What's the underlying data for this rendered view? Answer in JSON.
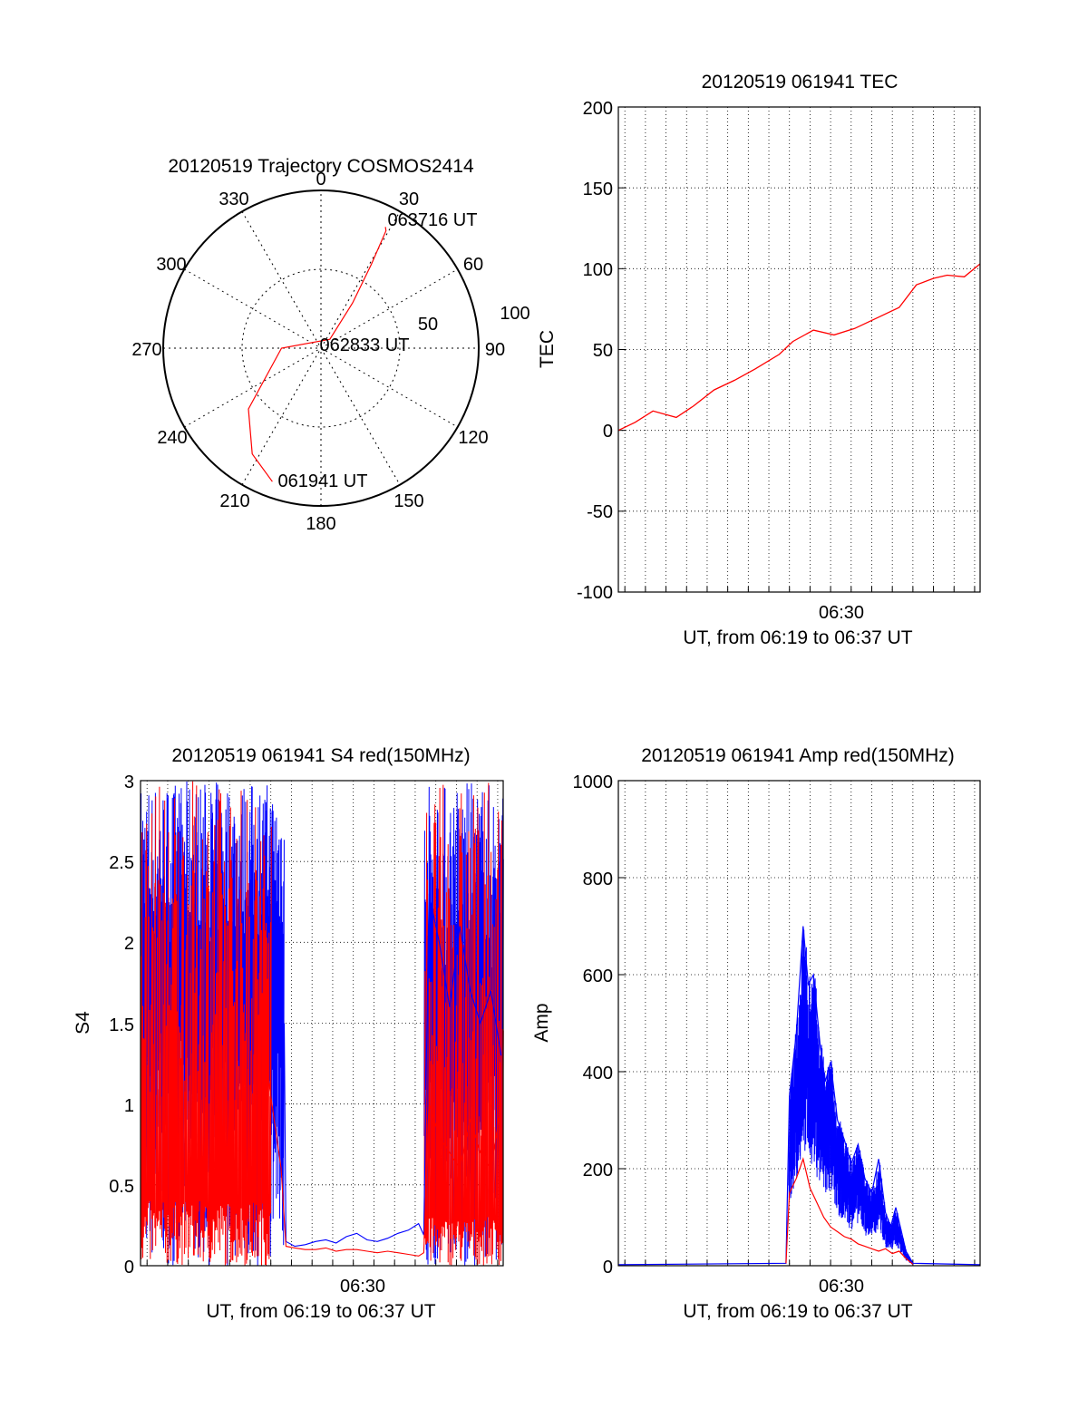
{
  "colors": {
    "red": "#ff0000",
    "blue": "#0000ff",
    "axis": "#000000"
  },
  "polar": {
    "title": "20120519 Trajectory COSMOS2414",
    "angle_labels": [
      "0",
      "30",
      "60",
      "90",
      "120",
      "150",
      "180",
      "210",
      "240",
      "270",
      "300",
      "330"
    ],
    "radius_labels": [
      "50",
      "100"
    ],
    "point_labels": {
      "start": "061941 UT",
      "mid": "062833 UT",
      "end": "063716 UT"
    },
    "trajectory": [
      [
        200,
        90
      ],
      [
        213,
        80
      ],
      [
        230,
        60
      ],
      [
        270,
        25
      ],
      [
        45,
        8
      ],
      [
        35,
        35
      ],
      [
        31,
        62
      ],
      [
        29,
        85
      ],
      [
        28,
        87
      ]
    ]
  },
  "tec": {
    "title": "20120519 061941 TEC",
    "ylabel": "TEC",
    "xlabel": "UT, from 06:19 to 06:37 UT",
    "yticks": [
      "200",
      "150",
      "100",
      "50",
      "0",
      "-50",
      "-100"
    ],
    "xtick": "06:30"
  },
  "s4": {
    "title": "20120519 061941 S4 red(150MHz)",
    "ylabel": "S4",
    "xlabel": "UT, from 06:19 to 06:37 UT",
    "yticks": [
      "3",
      "2.5",
      "2",
      "1.5",
      "1",
      "0.5",
      "0"
    ],
    "xtick": "06:30"
  },
  "amp": {
    "title": "20120519 061941 Amp red(150MHz)",
    "ylabel": "Amp",
    "xlabel": "UT, from 06:19 to 06:37 UT",
    "yticks": [
      "1000",
      "800",
      "600",
      "400",
      "200",
      "0"
    ],
    "xtick": "06:30"
  },
  "chart_data": [
    {
      "type": "line",
      "title": "20120519 Trajectory COSMOS2414",
      "projection": "polar",
      "theta_unit": "azimuth degrees (0 at top, clockwise)",
      "r_range": [
        0,
        100
      ],
      "series": [
        {
          "color": "#ff0000",
          "theta": [
            200,
            213,
            230,
            270,
            45,
            35,
            31,
            29,
            28
          ],
          "r": [
            90,
            80,
            60,
            25,
            8,
            35,
            62,
            85,
            87
          ]
        }
      ]
    },
    {
      "type": "line",
      "title": "20120519 061941 TEC",
      "xlabel": "UT, from 06:19 to 06:37 UT",
      "ylabel": "TEC",
      "xlim": [
        "06:19:41",
        "06:37:16"
      ],
      "ylim": [
        -100,
        200
      ],
      "grid": true,
      "series": [
        {
          "color": "#ff0000",
          "x": [
            "06:19:41",
            "06:20:30",
            "06:21:22",
            "06:22:30",
            "06:23:20",
            "06:24:20",
            "06:25:20",
            "06:26:20",
            "06:27:30",
            "06:28:10",
            "06:29:10",
            "06:30:10",
            "06:31:10",
            "06:32:20",
            "06:33:20",
            "06:34:10",
            "06:35:00",
            "06:35:40",
            "06:36:30",
            "06:37:16"
          ],
          "y": [
            0,
            5,
            12,
            8,
            15,
            25,
            31,
            38,
            47,
            55,
            62,
            59,
            63,
            70,
            76,
            90,
            94,
            96,
            95,
            103
          ]
        }
      ]
    },
    {
      "type": "line",
      "title": "20120519 061941 S4 red(150MHz)",
      "xlabel": "UT, from 06:19 to 06:37 UT",
      "ylabel": "S4",
      "xlim": [
        "06:19:41",
        "06:37:16"
      ],
      "ylim": [
        0,
        3
      ],
      "grid": true,
      "series": [
        {
          "color": "#0000ff",
          "x": [
            "06:26:39",
            "06:26:44",
            "06:27:10",
            "06:27:40",
            "06:28:10",
            "06:28:40",
            "06:29:10",
            "06:29:40",
            "06:30:10",
            "06:30:40",
            "06:31:10",
            "06:31:40",
            "06:32:10",
            "06:32:40",
            "06:33:10",
            "06:33:25",
            "06:33:40",
            "06:34:10",
            "06:34:40",
            "06:35:10",
            "06:35:40",
            "06:36:10",
            "06:36:40",
            "06:37:10"
          ],
          "y": [
            1.5,
            0.15,
            0.12,
            0.13,
            0.15,
            0.16,
            0.14,
            0.18,
            0.2,
            0.16,
            0.15,
            0.17,
            0.2,
            0.22,
            0.26,
            0.19,
            2.3,
            2.0,
            1.6,
            2.1,
            1.7,
            1.5,
            1.7,
            1.3
          ]
        },
        {
          "color": "#ff0000",
          "x": [
            "06:25:50",
            "06:26:10",
            "06:26:30",
            "06:26:44",
            "06:27:10",
            "06:27:40",
            "06:28:10",
            "06:28:40",
            "06:29:10",
            "06:29:40",
            "06:30:10",
            "06:30:40",
            "06:31:10",
            "06:31:40",
            "06:32:10",
            "06:32:40",
            "06:33:10",
            "06:33:25",
            "06:33:40",
            "06:34:10",
            "06:34:40",
            "06:35:10",
            "06:35:40",
            "06:36:10",
            "06:36:40",
            "06:37:10"
          ],
          "y": [
            1.2,
            0.9,
            0.6,
            0.12,
            0.11,
            0.1,
            0.1,
            0.11,
            0.09,
            0.1,
            0.1,
            0.09,
            0.08,
            0.09,
            0.08,
            0.07,
            0.06,
            0.08,
            1.0,
            0.8,
            0.7,
            0.6,
            0.9,
            0.7,
            0.6,
            1.0
          ]
        }
      ]
    },
    {
      "type": "line",
      "title": "20120519 061941 Amp red(150MHz)",
      "xlabel": "UT, from 06:19 to 06:37 UT",
      "ylabel": "Amp",
      "xlim": [
        "06:19:41",
        "06:37:16"
      ],
      "ylim": [
        0,
        1000
      ],
      "grid": true,
      "series": [
        {
          "color": "#0000ff",
          "x": [
            "06:19:41",
            "06:27:50",
            "06:28:00",
            "06:28:20",
            "06:28:40",
            "06:28:55",
            "06:29:10",
            "06:29:30",
            "06:29:45",
            "06:30:00",
            "06:30:20",
            "06:30:40",
            "06:31:00",
            "06:31:20",
            "06:31:40",
            "06:32:00",
            "06:32:20",
            "06:32:40",
            "06:32:55",
            "06:33:10",
            "06:33:40",
            "06:34:00",
            "06:37:16"
          ],
          "y": [
            2,
            5,
            350,
            480,
            700,
            580,
            600,
            450,
            380,
            420,
            300,
            260,
            210,
            250,
            180,
            150,
            220,
            110,
            80,
            120,
            30,
            5,
            2
          ]
        },
        {
          "color": "#ff0000",
          "x": [
            "06:27:50",
            "06:28:00",
            "06:28:20",
            "06:28:40",
            "06:29:00",
            "06:29:20",
            "06:29:40",
            "06:30:00",
            "06:30:20",
            "06:30:40",
            "06:31:00",
            "06:31:20",
            "06:31:40",
            "06:32:00",
            "06:32:20",
            "06:32:40",
            "06:33:00",
            "06:33:20",
            "06:33:40",
            "06:34:00"
          ],
          "y": [
            5,
            150,
            180,
            220,
            160,
            130,
            100,
            80,
            70,
            60,
            55,
            45,
            40,
            35,
            30,
            35,
            25,
            30,
            15,
            3
          ]
        }
      ]
    }
  ]
}
